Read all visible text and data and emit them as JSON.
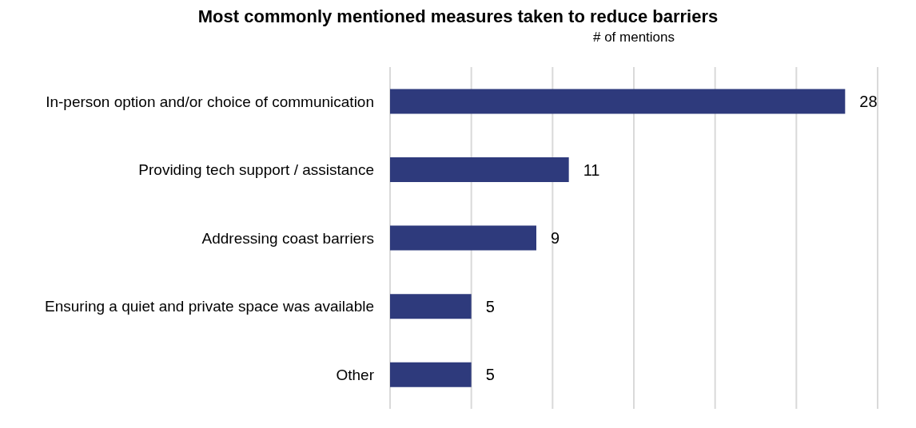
{
  "chart_data": {
    "type": "bar",
    "orientation": "horizontal",
    "title": "Most commonly mentioned measures taken to reduce barriers",
    "xlabel": "# of mentions",
    "categories": [
      "In-person option and/or choice of communication",
      "Providing tech support / assistance",
      "Addressing coast barriers",
      "Ensuring a quiet and private space was available",
      "Other"
    ],
    "values": [
      28,
      11,
      9,
      5,
      5
    ],
    "color": "#2e3a7c",
    "data_labels": true,
    "xlim": [
      0,
      30
    ],
    "xticks": [
      {
        "value": 0,
        "label": null
      },
      {
        "value": 5,
        "label": null
      },
      {
        "value": 10,
        "label": null
      },
      {
        "value": 15,
        "label": null
      },
      {
        "value": 20,
        "label": null
      },
      {
        "value": 25,
        "label": null
      },
      {
        "value": 30,
        "label": null
      }
    ],
    "grid": "x",
    "tick_labels": "y"
  }
}
